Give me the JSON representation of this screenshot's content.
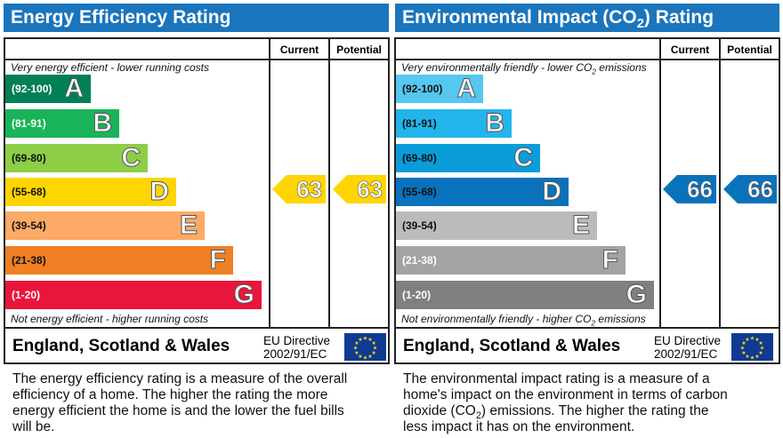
{
  "colors": {
    "header": "#1a75bc",
    "ee_arrow": "#ffd500",
    "ei_arrow": "#0a72bc",
    "flag": "#0f3a94",
    "stars": "#ffdd00"
  },
  "columns": {
    "current": "Current",
    "potential": "Potential"
  },
  "footer": {
    "region": "England, Scotland & Wales",
    "directive_line1": "EU Directive",
    "directive_line2": "2002/91/EC",
    "flag_icon": "eu-flag-icon"
  },
  "chart_data": [
    {
      "type": "bar",
      "title": "Energy Efficiency Rating",
      "top_caption": "Very energy efficient - lower running costs",
      "bottom_caption": "Not energy efficient - higher running costs",
      "categories": [
        "A",
        "B",
        "C",
        "D",
        "E",
        "F",
        "G"
      ],
      "ranges": [
        "(92-100)",
        "(81-91)",
        "(69-80)",
        "(55-68)",
        "(39-54)",
        "(21-38)",
        "(1-20)"
      ],
      "colors": [
        "#008054",
        "#19b459",
        "#8dce46",
        "#ffd500",
        "#fcaa65",
        "#ef8023",
        "#e9153b"
      ],
      "range_text_colors": [
        "#fff",
        "#fff",
        "#111",
        "#111",
        "#111",
        "#111",
        "#fff"
      ],
      "current": 63,
      "current_band": "D",
      "potential": 63,
      "potential_band": "D"
    },
    {
      "type": "bar",
      "title_main": "Environmental Impact (CO",
      "title_sub": "2",
      "title_end": ") Rating",
      "top_caption": "Very environmentally friendly - lower CO",
      "top_caption_sub": "2",
      "top_caption_end": " emissions",
      "bottom_caption": "Not environmentally friendly - higher CO",
      "bottom_caption_sub": "2",
      "bottom_caption_end": " emissions",
      "categories": [
        "A",
        "B",
        "C",
        "D",
        "E",
        "F",
        "G"
      ],
      "ranges": [
        "(92-100)",
        "(81-91)",
        "(69-80)",
        "(55-68)",
        "(39-54)",
        "(21-38)",
        "(1-20)"
      ],
      "colors": [
        "#55c7f0",
        "#22b5ec",
        "#0a9dd9",
        "#0a72bc",
        "#bbbbbb",
        "#a3a3a3",
        "#808080"
      ],
      "range_text_colors": [
        "#111",
        "#111",
        "#111",
        "#111",
        "#111",
        "#fff",
        "#fff"
      ],
      "current": 66,
      "current_band": "D",
      "potential": 66,
      "potential_band": "D"
    }
  ],
  "descriptions": {
    "ee": "The energy efficiency rating is a measure of the overall efficiency of a home. The higher the rating the more energy efficient the home is and the lower the fuel bills will be.",
    "ei_a": "The environmental impact rating is a measure of a home's impact on the environment in terms of carbon dioxide (CO",
    "ei_sub": "2",
    "ei_b": ") emissions. The higher the rating the less impact it has on the environment."
  }
}
